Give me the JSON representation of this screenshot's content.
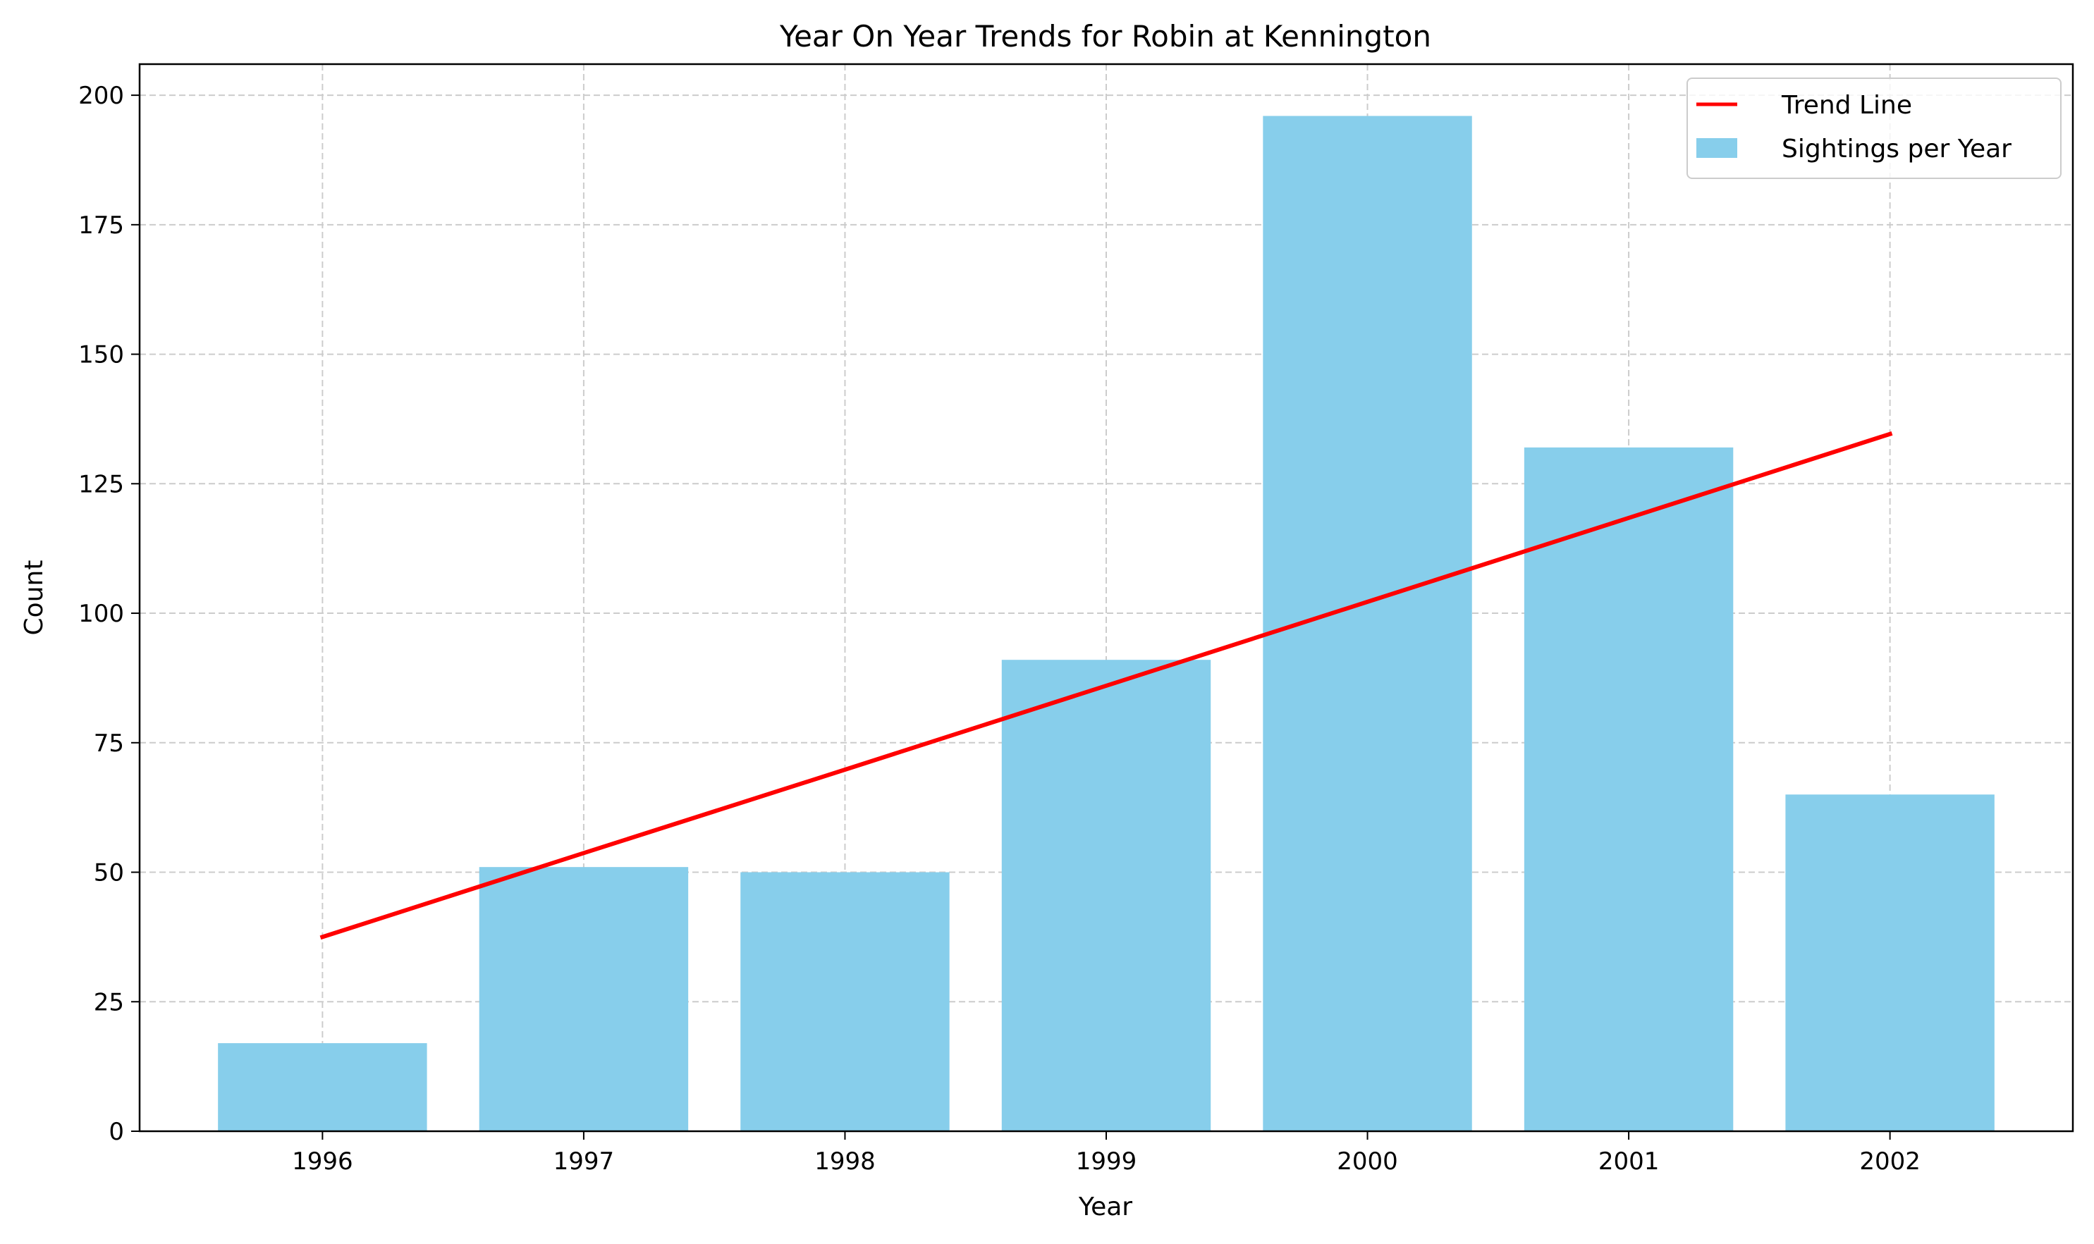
{
  "chart_data": {
    "type": "bar",
    "title": "Year On Year Trends for Robin at Kennington",
    "xlabel": "Year",
    "ylabel": "Count",
    "categories": [
      "1996",
      "1997",
      "1998",
      "1999",
      "2000",
      "2001",
      "2002"
    ],
    "series": [
      {
        "name": "Sightings per Year",
        "type": "bar",
        "color": "#87CEEB",
        "values": [
          17,
          51,
          50,
          91,
          196,
          132,
          65
        ]
      },
      {
        "name": "Trend Line",
        "type": "line",
        "color": "#FF0000",
        "values": [
          37.5,
          53.7,
          69.8,
          86.0,
          102.2,
          118.4,
          134.6
        ]
      }
    ],
    "yticks": [
      0,
      25,
      50,
      75,
      100,
      125,
      150,
      175,
      200
    ],
    "ylim": [
      0,
      206
    ],
    "grid": true,
    "legend_position": "top-right"
  }
}
